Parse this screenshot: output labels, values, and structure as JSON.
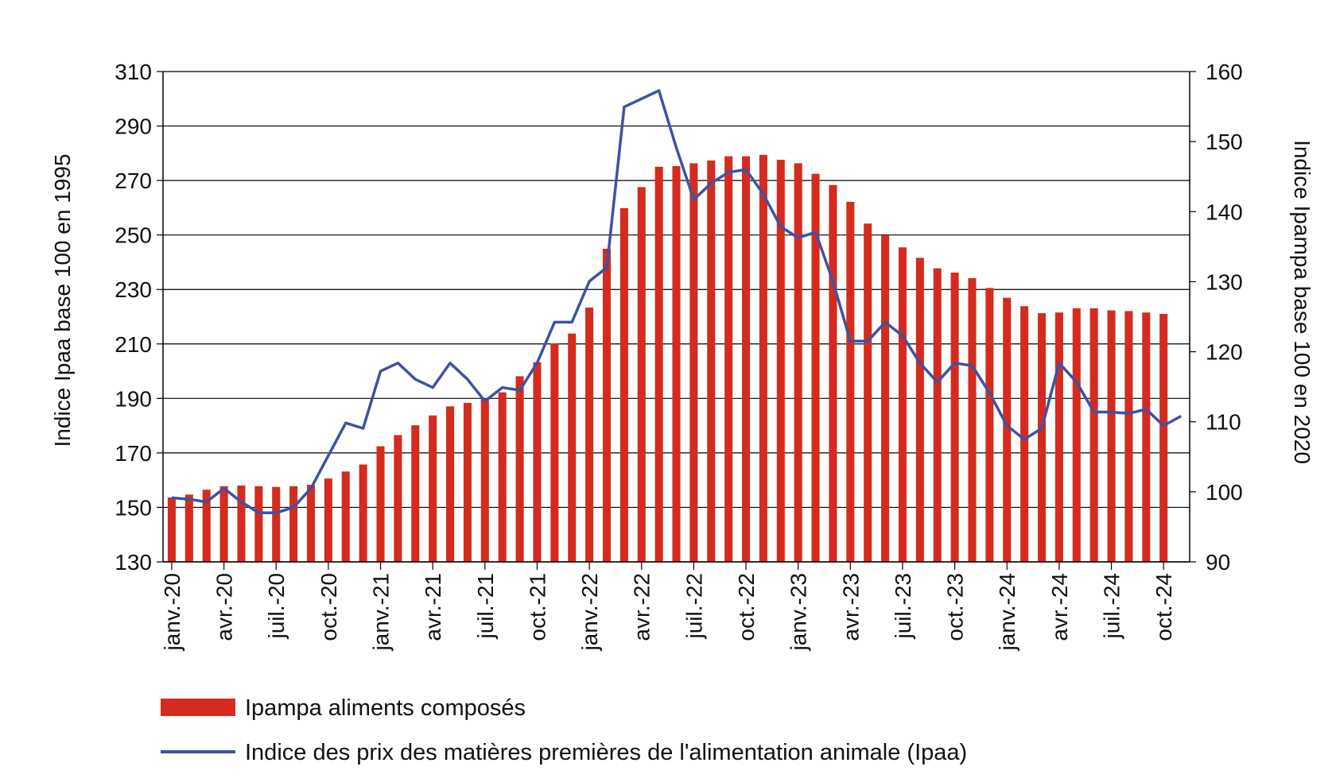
{
  "chart_data": {
    "type": "bar+line",
    "title": "",
    "x_tick_labels": [
      "janv.-20",
      "avr.-20",
      "juil.-20",
      "oct.-20",
      "janv.-21",
      "avr.-21",
      "juil.-21",
      "oct.-21",
      "janv.-22",
      "avr.-22",
      "juil.-22",
      "oct.-22",
      "janv.-23",
      "avr.-23",
      "juil.-23",
      "oct.-23",
      "janv.-24",
      "avr.-24",
      "juil.-24",
      "oct.-24"
    ],
    "y_left": {
      "label": "Indice Ipaa base 100 en 1995",
      "ticks": [
        130,
        150,
        170,
        190,
        210,
        230,
        250,
        270,
        290,
        310
      ],
      "range": [
        130,
        310
      ]
    },
    "y_right": {
      "label": "Indice Ipampa base 100 en 2020",
      "ticks": [
        90,
        100,
        110,
        120,
        130,
        140,
        150,
        160
      ],
      "range": [
        90,
        160
      ]
    },
    "grid": true,
    "legend_position": "bottom-left",
    "series": [
      {
        "name": "Ipampa aliments composés",
        "type": "bar",
        "axis": "right",
        "color": "#d52b1e",
        "values": [
          99.2,
          99.6,
          100.3,
          100.8,
          100.9,
          100.8,
          100.7,
          100.8,
          101.0,
          101.9,
          102.9,
          103.9,
          106.5,
          108.1,
          109.5,
          110.9,
          112.2,
          112.7,
          113.3,
          114.2,
          116.5,
          118.5,
          121.2,
          122.6,
          126.3,
          134.7,
          140.5,
          143.5,
          146.4,
          146.5,
          146.9,
          147.3,
          147.9,
          147.9,
          148.1,
          147.4,
          146.9,
          145.4,
          143.8,
          141.4,
          138.3,
          136.6,
          134.9,
          133.4,
          131.9,
          131.3,
          130.5,
          129.1,
          127.7,
          126.5,
          125.5,
          125.6,
          126.2,
          126.2,
          125.9,
          125.8,
          125.6,
          125.4
        ]
      },
      {
        "name": "Indice des prix des matières premières de l'alimentation animale (Ipaa)",
        "type": "line",
        "axis": "left",
        "color": "#3f51a2",
        "values": [
          153.5,
          153.0,
          152.0,
          157.0,
          152.0,
          148.0,
          148.0,
          150.0,
          157.0,
          169.0,
          181.0,
          179.0,
          200.0,
          203.0,
          197.0,
          194.0,
          203.0,
          197.0,
          189.0,
          194.0,
          193.0,
          203.0,
          218.0,
          218.0,
          233.0,
          238.0,
          297.0,
          300.0,
          303.0,
          282.0,
          263.0,
          269.0,
          273.0,
          274.0,
          265.0,
          253.0,
          249.0,
          251.0,
          233.0,
          211.0,
          211.0,
          218.0,
          213.0,
          203.0,
          196.0,
          203.0,
          202.0,
          192.0,
          180.0,
          175.0,
          179.0,
          203.0,
          196.0,
          185.0,
          185.0,
          184.5,
          186.0,
          180.0,
          183.5
        ]
      }
    ]
  }
}
